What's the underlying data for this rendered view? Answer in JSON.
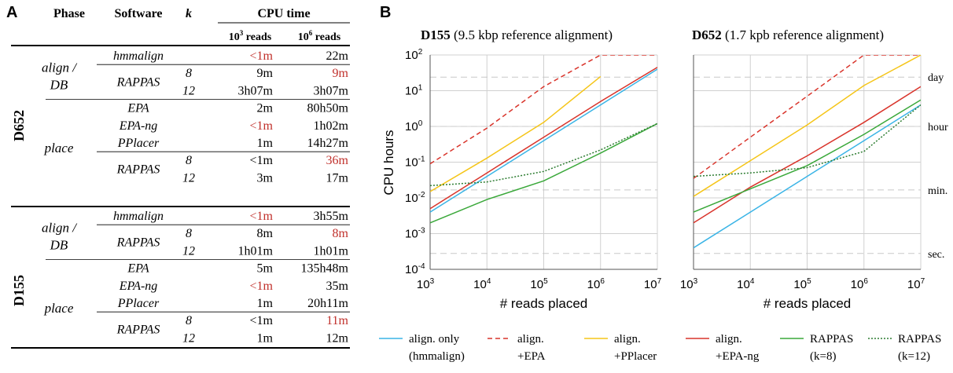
{
  "panel_a": {
    "letter": "A",
    "headers": {
      "phase": "Phase",
      "software": "Software",
      "k": "k",
      "cpu_time": "CPU time"
    },
    "subheaders": [
      {
        "base": "10",
        "exp": "3",
        "rest": " reads"
      },
      {
        "base": "10",
        "exp": "6",
        "rest": " reads"
      }
    ],
    "datasets": [
      {
        "name": "D652",
        "rows": [
          {
            "phase": "align / DB",
            "software": "hmmalign",
            "k": "",
            "t1": "<1m",
            "t2": "22m",
            "t1_red": true,
            "t2_red": false
          },
          {
            "phase": "",
            "software": "RAPPAS",
            "k": "8",
            "t1": "9m",
            "t2": "9m",
            "t1_red": false,
            "t2_red": true
          },
          {
            "phase": "",
            "software": "",
            "k": "12",
            "t1": "3h07m",
            "t2": "3h07m",
            "t1_red": false,
            "t2_red": false
          },
          {
            "phase": "place",
            "software": "EPA",
            "k": "",
            "t1": "2m",
            "t2": "80h50m",
            "t1_red": false,
            "t2_red": false
          },
          {
            "phase": "",
            "software": "EPA-ng",
            "k": "",
            "t1": "<1m",
            "t2": "1h02m",
            "t1_red": true,
            "t2_red": false
          },
          {
            "phase": "",
            "software": "PPlacer",
            "k": "",
            "t1": "1m",
            "t2": "14h27m",
            "t1_red": false,
            "t2_red": false
          },
          {
            "phase": "",
            "software": "RAPPAS",
            "k": "8",
            "t1": "<1m",
            "t2": "36m",
            "t1_red": false,
            "t2_red": true
          },
          {
            "phase": "",
            "software": "",
            "k": "12",
            "t1": "3m",
            "t2": "17m",
            "t1_red": false,
            "t2_red": false
          }
        ]
      },
      {
        "name": "D155",
        "rows": [
          {
            "phase": "align / DB",
            "software": "hmmalign",
            "k": "",
            "t1": "<1m",
            "t2": "3h55m",
            "t1_red": true,
            "t2_red": false
          },
          {
            "phase": "",
            "software": "RAPPAS",
            "k": "8",
            "t1": "8m",
            "t2": "8m",
            "t1_red": false,
            "t2_red": true
          },
          {
            "phase": "",
            "software": "",
            "k": "12",
            "t1": "1h01m",
            "t2": "1h01m",
            "t1_red": false,
            "t2_red": false
          },
          {
            "phase": "place",
            "software": "EPA",
            "k": "",
            "t1": "5m",
            "t2": "135h48m",
            "t1_red": false,
            "t2_red": false
          },
          {
            "phase": "",
            "software": "EPA-ng",
            "k": "",
            "t1": "<1m",
            "t2": "35m",
            "t1_red": true,
            "t2_red": false
          },
          {
            "phase": "",
            "software": "PPlacer",
            "k": "",
            "t1": "1m",
            "t2": "20h11m",
            "t1_red": false,
            "t2_red": false
          },
          {
            "phase": "",
            "software": "RAPPAS",
            "k": "8",
            "t1": "<1m",
            "t2": "11m",
            "t1_red": false,
            "t2_red": true
          },
          {
            "phase": "",
            "software": "",
            "k": "12",
            "t1": "1m",
            "t2": "12m",
            "t1_red": false,
            "t2_red": false
          }
        ]
      }
    ]
  },
  "panel_b": {
    "letter": "B",
    "ylabel": "CPU hours",
    "xlabel": "# reads placed",
    "ref_lines": [
      {
        "label": "day",
        "value": 24
      },
      {
        "label": "hour",
        "value": 1
      },
      {
        "label": "min.",
        "value": 0.016667
      },
      {
        "label": "sec.",
        "value": 0.000278
      }
    ],
    "legend": [
      {
        "key": "hmmalign",
        "line1": "align. only",
        "line2": "(hmmalign)"
      },
      {
        "key": "epa",
        "line1": "align.",
        "line2": "+EPA"
      },
      {
        "key": "pplacer",
        "line1": "align.",
        "line2": "+PPlacer"
      },
      {
        "key": "epang",
        "line1": "align.",
        "line2": "+EPA-ng"
      },
      {
        "key": "rappas8",
        "line1": "RAPPAS",
        "line2": "(k=8)"
      },
      {
        "key": "rappas12",
        "line1": "RAPPAS",
        "line2": "(k=12)"
      }
    ]
  },
  "styles": {
    "hmmalign": {
      "color": "#3ab4e6",
      "dash": ""
    },
    "epa": {
      "color": "#d9342b",
      "dash": "6,4"
    },
    "pplacer": {
      "color": "#f5c518",
      "dash": ""
    },
    "epang": {
      "color": "#d9342b",
      "dash": ""
    },
    "rappas8": {
      "color": "#3aa83a",
      "dash": ""
    },
    "rappas12": {
      "color": "#2e7d32",
      "dash": "2,2"
    }
  },
  "chart_data": [
    {
      "type": "line",
      "title": "D155",
      "subtitle": "(9.5 kbp reference alignment)",
      "xlabel": "# reads placed",
      "ylabel": "CPU hours",
      "xscale": "log",
      "yscale": "log",
      "xlim": [
        1000,
        10000000
      ],
      "ylim": [
        0.0001,
        100
      ],
      "grid": true,
      "xticks": [
        {
          "base": "10",
          "exp": "3"
        },
        {
          "base": "10",
          "exp": "4"
        },
        {
          "base": "10",
          "exp": "5"
        },
        {
          "base": "10",
          "exp": "6"
        },
        {
          "base": "10",
          "exp": "7"
        }
      ],
      "yticks": [
        {
          "base": "10",
          "exp": "2",
          "v": 100
        },
        {
          "base": "10",
          "exp": "1",
          "v": 10
        },
        {
          "base": "10",
          "exp": "0",
          "v": 1
        },
        {
          "base": "10",
          "exp": "-1",
          "v": 0.1
        },
        {
          "base": "10",
          "exp": "-2",
          "v": 0.01
        },
        {
          "base": "10",
          "exp": "-3",
          "v": 0.001
        },
        {
          "base": "10",
          "exp": "-4",
          "v": 0.0001
        }
      ],
      "series": [
        {
          "key": "epa",
          "x": [
            1000,
            10000,
            100000,
            1000000,
            10000000
          ],
          "y": [
            0.09,
            0.9,
            13,
            100,
            100
          ]
        },
        {
          "key": "pplacer",
          "x": [
            1000,
            10000,
            100000,
            1000000
          ],
          "y": [
            0.015,
            0.13,
            1.3,
            25
          ]
        },
        {
          "key": "epang",
          "x": [
            1000,
            10000,
            100000,
            1000000,
            10000000
          ],
          "y": [
            0.005,
            0.05,
            0.5,
            5,
            45
          ]
        },
        {
          "key": "hmmalign",
          "x": [
            1000,
            10000,
            100000,
            1000000,
            10000000
          ],
          "y": [
            0.004,
            0.04,
            0.4,
            4,
            40
          ]
        },
        {
          "key": "rappas8",
          "x": [
            1000,
            10000,
            100000,
            1000000,
            10000000
          ],
          "y": [
            0.002,
            0.009,
            0.03,
            0.18,
            1.2
          ]
        },
        {
          "key": "rappas12",
          "x": [
            1000,
            10000,
            100000,
            1000000,
            10000000
          ],
          "y": [
            0.022,
            0.028,
            0.055,
            0.22,
            1.2
          ]
        }
      ]
    },
    {
      "type": "line",
      "title": "D652",
      "subtitle": "(1.7 kpb reference alignment)",
      "xlabel": "# reads placed",
      "ylabel": "CPU hours",
      "xscale": "log",
      "yscale": "log",
      "xlim": [
        1000,
        10000000
      ],
      "ylim": [
        0.0001,
        100
      ],
      "grid": true,
      "xticks": [
        {
          "base": "10",
          "exp": "3"
        },
        {
          "base": "10",
          "exp": "4"
        },
        {
          "base": "10",
          "exp": "5"
        },
        {
          "base": "10",
          "exp": "6"
        },
        {
          "base": "10",
          "exp": "7"
        }
      ],
      "yticks": [],
      "series": [
        {
          "key": "epa",
          "x": [
            1000,
            10000,
            100000,
            1000000,
            10000000
          ],
          "y": [
            0.035,
            0.5,
            7,
            100,
            100
          ]
        },
        {
          "key": "pplacer",
          "x": [
            1000,
            10000,
            100000,
            1000000,
            10000000
          ],
          "y": [
            0.011,
            0.11,
            1.1,
            14,
            100
          ]
        },
        {
          "key": "epang",
          "x": [
            1000,
            10000,
            100000,
            1000000,
            10000000
          ],
          "y": [
            0.002,
            0.02,
            0.15,
            1.3,
            13
          ]
        },
        {
          "key": "hmmalign",
          "x": [
            1000,
            10000,
            100000,
            1000000,
            10000000
          ],
          "y": [
            0.0004,
            0.004,
            0.04,
            0.4,
            4
          ]
        },
        {
          "key": "rappas8",
          "x": [
            1000,
            10000,
            100000,
            1000000,
            10000000
          ],
          "y": [
            0.004,
            0.018,
            0.08,
            0.6,
            5.5
          ]
        },
        {
          "key": "rappas12",
          "x": [
            1000,
            10000,
            100000,
            1000000,
            10000000
          ],
          "y": [
            0.04,
            0.05,
            0.07,
            0.2,
            4
          ]
        }
      ]
    }
  ]
}
